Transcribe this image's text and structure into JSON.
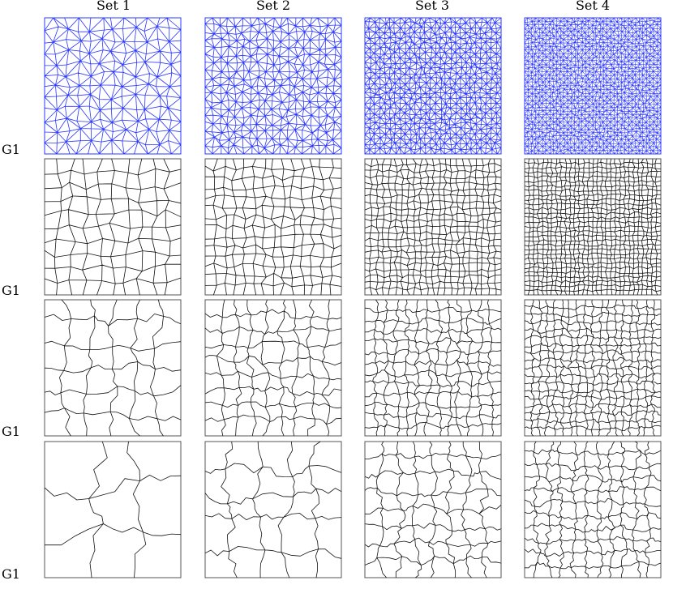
{
  "columns": [
    "Set 1",
    "Set 2",
    "Set 3",
    "Set 4"
  ],
  "rows": [
    {
      "label": "G1"
    },
    {
      "label": "G1"
    },
    {
      "label": "G1"
    },
    {
      "label": "G1"
    }
  ]
}
